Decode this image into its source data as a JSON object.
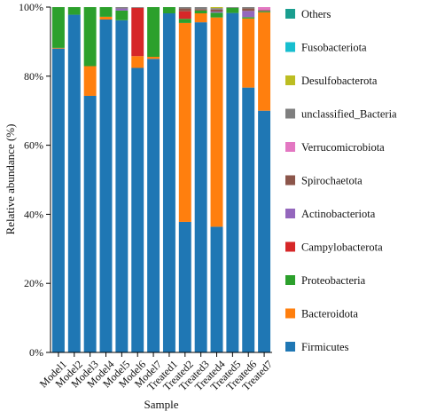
{
  "chart_data": {
    "type": "bar",
    "stacked": true,
    "xlabel": "Sample",
    "ylabel": "Relative abundance (%)",
    "ylim": [
      0,
      100
    ],
    "yticks": [
      0,
      20,
      40,
      60,
      80,
      100
    ],
    "ytick_labels": [
      "0%",
      "20%",
      "40%",
      "60%",
      "80%",
      "100%"
    ],
    "grid": false,
    "legend_position": "right",
    "categories": [
      "Model1",
      "Model2",
      "Model3",
      "Model4",
      "Model5",
      "Model6",
      "Model7",
      "Treated1",
      "Treated2",
      "Treated3",
      "Treated4",
      "Treated5",
      "Treated6",
      "Treated7"
    ],
    "series": [
      {
        "name": "Firmicutes",
        "color": "#1f77b4",
        "values": [
          88.0,
          97.8,
          74.3,
          96.4,
          96.2,
          82.4,
          85.0,
          98.2,
          37.8,
          95.6,
          36.4,
          98.3,
          76.7,
          70.0
        ]
      },
      {
        "name": "Bacteroidota",
        "color": "#ff7f0e",
        "values": [
          0.2,
          0.0,
          8.6,
          0.8,
          0.0,
          3.4,
          0.6,
          0.0,
          57.6,
          2.6,
          60.6,
          0.0,
          20.0,
          28.5
        ]
      },
      {
        "name": "Proteobacteria",
        "color": "#2ca02c",
        "values": [
          11.8,
          2.2,
          17.1,
          2.8,
          2.8,
          0.0,
          14.4,
          1.8,
          1.2,
          0.8,
          1.4,
          1.5,
          0.4,
          0.3
        ]
      },
      {
        "name": "Campylobacterota",
        "color": "#d62728",
        "values": [
          0.0,
          0.0,
          0.0,
          0.0,
          0.0,
          14.0,
          0.0,
          0.0,
          2.2,
          0.0,
          0.0,
          0.0,
          0.0,
          0.0
        ]
      },
      {
        "name": "Actinobacteriota",
        "color": "#9467bd",
        "values": [
          0.0,
          0.0,
          0.0,
          0.0,
          0.6,
          0.0,
          0.0,
          0.0,
          0.0,
          0.0,
          0.3,
          0.0,
          1.8,
          0.0
        ]
      },
      {
        "name": "Spirochaetota",
        "color": "#8c564b",
        "values": [
          0.0,
          0.0,
          0.0,
          0.0,
          0.0,
          0.0,
          0.0,
          0.0,
          0.8,
          0.4,
          0.6,
          0.0,
          0.7,
          0.3
        ]
      },
      {
        "name": "Verrucomicrobiota",
        "color": "#e377c2",
        "values": [
          0.0,
          0.0,
          0.0,
          0.0,
          0.0,
          0.0,
          0.0,
          0.0,
          0.0,
          0.0,
          0.0,
          0.0,
          0.0,
          0.9
        ]
      },
      {
        "name": "unclassified_Bacteria",
        "color": "#7f7f7f",
        "values": [
          0.0,
          0.0,
          0.0,
          0.0,
          0.4,
          0.2,
          0.0,
          0.0,
          0.4,
          0.6,
          0.4,
          0.2,
          0.4,
          0.0
        ]
      },
      {
        "name": "Desulfobacterota",
        "color": "#bcbd22",
        "values": [
          0.0,
          0.0,
          0.0,
          0.0,
          0.0,
          0.0,
          0.0,
          0.0,
          0.0,
          0.0,
          0.3,
          0.0,
          0.0,
          0.0
        ]
      },
      {
        "name": "Fusobacteriota",
        "color": "#17becf",
        "values": [
          0.0,
          0.0,
          0.0,
          0.0,
          0.0,
          0.0,
          0.0,
          0.0,
          0.0,
          0.0,
          0.0,
          0.0,
          0.0,
          0.0
        ]
      },
      {
        "name": "Others",
        "color": "#1a9e8f",
        "values": [
          0.0,
          0.0,
          0.0,
          0.0,
          0.0,
          0.0,
          0.0,
          0.0,
          0.0,
          0.0,
          0.0,
          0.0,
          0.0,
          0.0
        ]
      }
    ]
  }
}
